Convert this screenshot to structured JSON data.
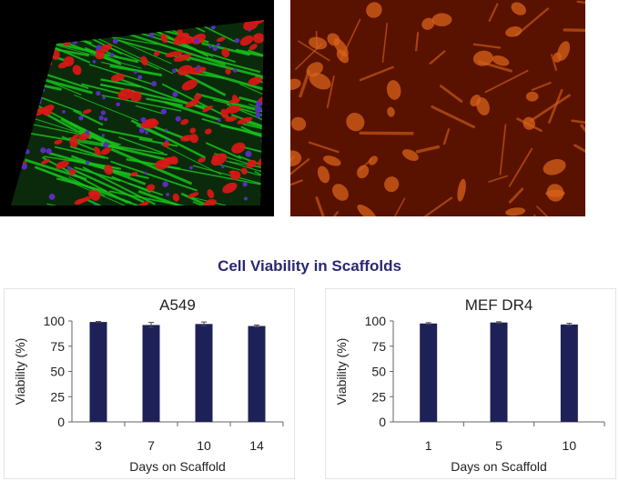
{
  "images": {
    "scaffold": {
      "description_colors": [
        "#17c21c",
        "#e01616",
        "#5a2dc0"
      ]
    },
    "cells": {
      "colors": [
        "#5a1200",
        "#d8621a"
      ]
    }
  },
  "figure_title": "Cell Viability in Scaffolds",
  "chart_data": [
    {
      "type": "bar",
      "title": "A549",
      "xlabel": "Days on Scaffold",
      "ylabel": "Viability (%)",
      "ylim": [
        0,
        100
      ],
      "yticks": [
        0,
        25,
        50,
        75,
        100
      ],
      "categories": [
        "3",
        "7",
        "10",
        "14"
      ],
      "values": [
        99,
        96,
        97,
        95
      ],
      "errors": [
        0.5,
        2.5,
        2,
        1
      ],
      "bar_color": "#1e2157",
      "grid": false
    },
    {
      "type": "bar",
      "title": "MEF DR4",
      "xlabel": "Days on Scaffold",
      "ylabel": "Viability (%)",
      "ylim": [
        0,
        100
      ],
      "yticks": [
        0,
        25,
        50,
        75,
        100
      ],
      "categories": [
        "1",
        "5",
        "10"
      ],
      "values": [
        97.5,
        98.5,
        96.5
      ],
      "errors": [
        0.8,
        0.7,
        1.2
      ],
      "bar_color": "#1e2157",
      "grid": false
    }
  ]
}
